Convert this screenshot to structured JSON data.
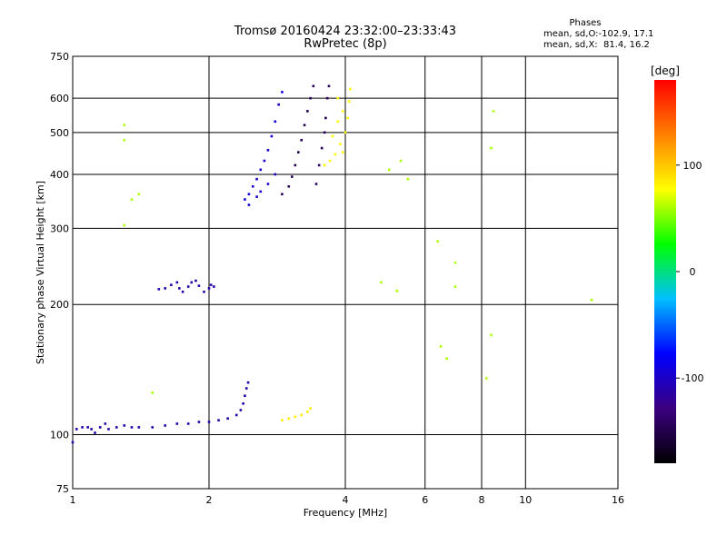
{
  "title_line1": "Tromsø 20160424 23:32:00–23:33:43",
  "title_line2": "RwPretec (8p)",
  "phases_header": "Phases",
  "phase_o": "mean, sd,O:-102.9, 17.1",
  "phase_x": "mean, sd,X:  81.4, 16.2",
  "colorbar_unit": "[deg]",
  "chart_data": {
    "type": "scatter",
    "xlabel": "Frequency [MHz]",
    "ylabel": "Stationary phase Virtual Height [km]",
    "x_scale": "log",
    "y_scale": "log",
    "xlim": [
      1,
      16
    ],
    "ylim": [
      75,
      750
    ],
    "x_ticks": [
      1,
      2,
      4,
      6,
      8,
      10,
      16
    ],
    "x_tick_labels": [
      "1",
      "2",
      "4",
      "6",
      "8",
      "10",
      "16"
    ],
    "y_ticks": [
      75,
      100,
      200,
      300,
      400,
      500,
      600,
      750
    ],
    "y_tick_labels": [
      "75",
      "100",
      "200",
      "300",
      "400",
      "500",
      "600",
      "750"
    ],
    "grid": true,
    "colorbar": {
      "label": "[deg]",
      "range": [
        -180,
        180
      ],
      "ticks": [
        -100,
        0,
        100
      ],
      "tick_labels": [
        "-100",
        "0",
        "100"
      ],
      "colors": [
        "#000000",
        "#3b0080",
        "#0000ff",
        "#00bfff",
        "#00ff00",
        "#ffff00",
        "#ff8000",
        "#ff0000"
      ]
    },
    "series": [
      {
        "trace": "o-ray lower trace",
        "phase_deg": -110,
        "points": [
          [
            1.0,
            96
          ],
          [
            1.02,
            103
          ],
          [
            1.05,
            104
          ],
          [
            1.08,
            104
          ],
          [
            1.1,
            103
          ],
          [
            1.12,
            101
          ],
          [
            1.15,
            104
          ],
          [
            1.18,
            106
          ],
          [
            1.2,
            103
          ],
          [
            1.25,
            104
          ],
          [
            1.3,
            105
          ],
          [
            1.35,
            104
          ],
          [
            1.4,
            104
          ],
          [
            1.5,
            104
          ],
          [
            1.6,
            105
          ],
          [
            1.7,
            106
          ],
          [
            1.8,
            106
          ],
          [
            1.9,
            107
          ],
          [
            2.0,
            107
          ],
          [
            2.1,
            108
          ],
          [
            2.2,
            109
          ],
          [
            2.3,
            111
          ],
          [
            2.35,
            114
          ],
          [
            2.38,
            118
          ],
          [
            2.4,
            123
          ],
          [
            2.42,
            128
          ],
          [
            2.44,
            132
          ]
        ]
      },
      {
        "trace": "o-ray cluster 1.7-2.1 MHz",
        "phase_deg": -110,
        "points": [
          [
            1.55,
            217
          ],
          [
            1.6,
            218
          ],
          [
            1.65,
            222
          ],
          [
            1.7,
            225
          ],
          [
            1.72,
            218
          ],
          [
            1.75,
            214
          ],
          [
            1.8,
            220
          ],
          [
            1.83,
            225
          ],
          [
            1.87,
            227
          ],
          [
            1.9,
            221
          ],
          [
            1.95,
            214
          ],
          [
            2.0,
            218
          ],
          [
            2.02,
            222
          ],
          [
            2.05,
            220
          ]
        ]
      },
      {
        "trace": "o-ray F-trace",
        "phase_deg": -95,
        "points": [
          [
            2.4,
            350
          ],
          [
            2.45,
            360
          ],
          [
            2.5,
            375
          ],
          [
            2.55,
            390
          ],
          [
            2.6,
            410
          ],
          [
            2.65,
            430
          ],
          [
            2.7,
            455
          ],
          [
            2.75,
            490
          ],
          [
            2.8,
            530
          ],
          [
            2.85,
            580
          ],
          [
            2.9,
            620
          ],
          [
            2.45,
            340
          ],
          [
            2.55,
            355
          ],
          [
            2.6,
            365
          ],
          [
            2.7,
            380
          ],
          [
            2.8,
            400
          ]
        ]
      },
      {
        "trace": "x-ray F-trace",
        "phase_deg": -145,
        "points": [
          [
            2.9,
            360
          ],
          [
            3.0,
            375
          ],
          [
            3.05,
            395
          ],
          [
            3.1,
            420
          ],
          [
            3.15,
            450
          ],
          [
            3.2,
            480
          ],
          [
            3.25,
            520
          ],
          [
            3.3,
            560
          ],
          [
            3.35,
            600
          ],
          [
            3.4,
            640
          ],
          [
            3.45,
            380
          ],
          [
            3.5,
            420
          ],
          [
            3.55,
            460
          ],
          [
            3.6,
            500
          ],
          [
            3.62,
            540
          ],
          [
            3.65,
            600
          ],
          [
            3.68,
            640
          ]
        ]
      },
      {
        "trace": "x-ray yellow trace",
        "phase_deg": 80,
        "points": [
          [
            3.6,
            420
          ],
          [
            3.7,
            430
          ],
          [
            3.8,
            445
          ],
          [
            3.9,
            470
          ],
          [
            4.0,
            500
          ],
          [
            4.05,
            540
          ],
          [
            4.08,
            590
          ],
          [
            4.1,
            630
          ],
          [
            3.85,
            600
          ],
          [
            3.95,
            560
          ],
          [
            3.95,
            450
          ],
          [
            3.75,
            490
          ],
          [
            3.85,
            530
          ]
        ]
      },
      {
        "trace": "x-ray yellow E-region",
        "phase_deg": 85,
        "points": [
          [
            2.9,
            108
          ],
          [
            3.0,
            109
          ],
          [
            3.1,
            110
          ],
          [
            3.2,
            111
          ],
          [
            3.3,
            113
          ],
          [
            3.35,
            115
          ]
        ]
      },
      {
        "trace": "scattered",
        "phase_deg": 60,
        "points": [
          [
            1.3,
            520
          ],
          [
            1.3,
            480
          ],
          [
            1.35,
            350
          ],
          [
            1.4,
            360
          ],
          [
            1.3,
            305
          ],
          [
            1.5,
            125
          ],
          [
            5.3,
            430
          ],
          [
            5.0,
            410
          ],
          [
            5.5,
            390
          ],
          [
            6.4,
            280
          ],
          [
            6.5,
            160
          ],
          [
            6.7,
            150
          ],
          [
            7.0,
            220
          ],
          [
            7.0,
            250
          ],
          [
            8.2,
            135
          ],
          [
            8.4,
            170
          ],
          [
            8.4,
            460
          ],
          [
            8.5,
            560
          ],
          [
            14.0,
            205
          ],
          [
            4.8,
            225
          ],
          [
            5.2,
            215
          ]
        ]
      }
    ]
  }
}
